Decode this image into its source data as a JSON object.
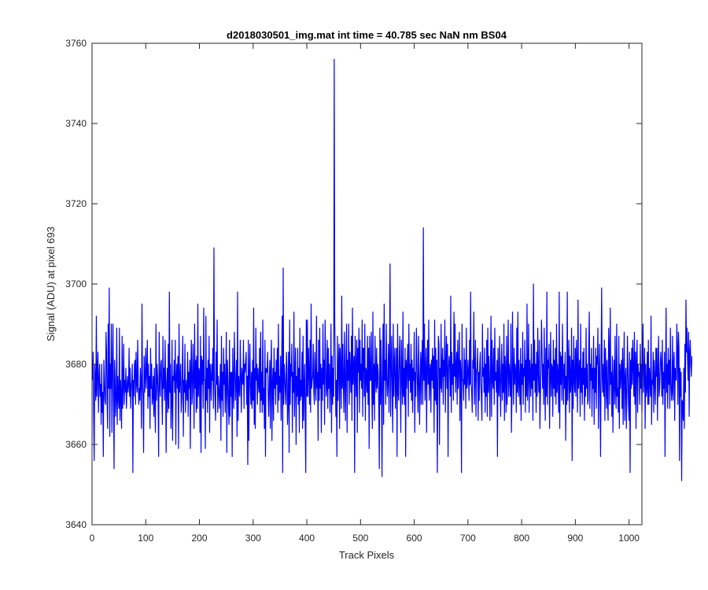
{
  "chart_data": {
    "type": "line",
    "title": "d2018030501_img.mat int time = 40.785 sec  NaN nm BS04",
    "xlabel": "Track Pixels",
    "ylabel": "Signal (ADU) at pixel 693",
    "xlim": [
      0,
      1024
    ],
    "ylim": [
      3640,
      3760
    ],
    "xticks": [
      0,
      100,
      200,
      300,
      400,
      500,
      600,
      700,
      800,
      900,
      1000
    ],
    "yticks": [
      3640,
      3660,
      3680,
      3700,
      3720,
      3740,
      3760
    ],
    "grid": false,
    "legend": "none",
    "line_color": "#0000ff",
    "axes_color": "#262626",
    "series": [
      {
        "x_start": 1,
        "x_step": 1,
        "values": [
          3676,
          3683,
          3667,
          3656,
          3680,
          3676,
          3671,
          3692,
          3672,
          3678,
          3683,
          3668,
          3676,
          3680,
          3672,
          3675,
          3665,
          3680,
          3668,
          3673,
          3657,
          3681,
          3676,
          3671,
          3670,
          3688,
          3683,
          3671,
          3664,
          3690,
          3674,
          3699,
          3662,
          3680,
          3674,
          3690,
          3663,
          3678,
          3690,
          3672,
          3654,
          3681,
          3676,
          3667,
          3671,
          3689,
          3665,
          3677,
          3672,
          3669,
          3689,
          3666,
          3676,
          3672,
          3664,
          3687,
          3669,
          3675,
          3685,
          3670,
          3676,
          3673,
          3679,
          3669,
          3674,
          3677,
          3673,
          3675,
          3684,
          3672,
          3679,
          3669,
          3674,
          3676,
          3680,
          3653,
          3676,
          3672,
          3680,
          3681,
          3670,
          3683,
          3675,
          3673,
          3686,
          3677,
          3670,
          3674,
          3671,
          3679,
          3675,
          3664,
          3695,
          3675,
          3672,
          3658,
          3682,
          3673,
          3677,
          3684,
          3674,
          3679,
          3686,
          3669,
          3680,
          3672,
          3677,
          3664,
          3684,
          3674,
          3680,
          3670,
          3672,
          3677,
          3667,
          3679,
          3669,
          3663,
          3690,
          3671,
          3680,
          3677,
          3672,
          3657,
          3688,
          3675,
          3672,
          3680,
          3681,
          3673,
          3665,
          3687,
          3674,
          3679,
          3671,
          3686,
          3676,
          3658,
          3675,
          3679,
          3668,
          3685,
          3669,
          3698,
          3673,
          3680,
          3664,
          3671,
          3686,
          3661,
          3677,
          3676,
          3681,
          3673,
          3686,
          3660,
          3677,
          3680,
          3674,
          3682,
          3659,
          3690,
          3673,
          3676,
          3680,
          3668,
          3671,
          3679,
          3687,
          3662,
          3676,
          3673,
          3685,
          3668,
          3674,
          3676,
          3671,
          3683,
          3667,
          3678,
          3674,
          3681,
          3659,
          3679,
          3686,
          3670,
          3673,
          3685,
          3677,
          3664,
          3690,
          3674,
          3681,
          3668,
          3682,
          3669,
          3695,
          3672,
          3679,
          3678,
          3663,
          3687,
          3658,
          3682,
          3675,
          3681,
          3669,
          3694,
          3676,
          3676,
          3659,
          3692,
          3671,
          3679,
          3668,
          3681,
          3674,
          3687,
          3663,
          3680,
          3677,
          3671,
          3680,
          3676,
          3684,
          3669,
          3709,
          3676,
          3671,
          3666,
          3683,
          3675,
          3691,
          3668,
          3677,
          3674,
          3669,
          3674,
          3680,
          3661,
          3687,
          3671,
          3678,
          3667,
          3684,
          3675,
          3680,
          3668,
          3675,
          3688,
          3658,
          3681,
          3677,
          3670,
          3665,
          3686,
          3667,
          3678,
          3672,
          3678,
          3657,
          3684,
          3674,
          3669,
          3688,
          3679,
          3671,
          3675,
          3681,
          3662,
          3698,
          3666,
          3677,
          3674,
          3672,
          3686,
          3677,
          3668,
          3679,
          3676,
          3675,
          3686,
          3669,
          3680,
          3678,
          3681,
          3683,
          3670,
          3677,
          3655,
          3686,
          3661,
          3677,
          3685,
          3674,
          3670,
          3678,
          3669,
          3681,
          3671,
          3694,
          3665,
          3679,
          3664,
          3689,
          3676,
          3680,
          3670,
          3679,
          3675,
          3673,
          3684,
          3668,
          3688,
          3671,
          3678,
          3668,
          3691,
          3670,
          3674,
          3664,
          3686,
          3657,
          3679,
          3678,
          3678,
          3683,
          3672,
          3667,
          3675,
          3681,
          3664,
          3679,
          3686,
          3661,
          3675,
          3679,
          3666,
          3684,
          3674,
          3678,
          3670,
          3681,
          3675,
          3684,
          3668,
          3690,
          3671,
          3677,
          3673,
          3682,
          3666,
          3678,
          3692,
          3653,
          3704,
          3670,
          3680,
          3677,
          3673,
          3670,
          3683,
          3679,
          3665,
          3671,
          3683,
          3658,
          3691,
          3670,
          3680,
          3677,
          3685,
          3663,
          3678,
          3673,
          3693,
          3667,
          3678,
          3684,
          3660,
          3677,
          3672,
          3684,
          3670,
          3679,
          3663,
          3689,
          3671,
          3676,
          3672,
          3683,
          3664,
          3687,
          3666,
          3674,
          3680,
          3666,
          3653,
          3691,
          3672,
          3691,
          3672,
          3684,
          3678,
          3670,
          3686,
          3668,
          3695,
          3674,
          3676,
          3677,
          3685,
          3673,
          3670,
          3683,
          3676,
          3671,
          3692,
          3674,
          3678,
          3661,
          3686,
          3671,
          3689,
          3674,
          3680,
          3663,
          3679,
          3671,
          3690,
          3675,
          3681,
          3665,
          3691,
          3681,
          3672,
          3674,
          3686,
          3669,
          3684,
          3674,
          3680,
          3668,
          3676,
          3690,
          3663,
          3682,
          3670,
          3679,
          3672,
          3756,
          3690,
          3680,
          3667,
          3676,
          3657,
          3687,
          3671,
          3680,
          3685,
          3664,
          3684,
          3679,
          3669,
          3697,
          3674,
          3685,
          3675,
          3668,
          3688,
          3676,
          3666,
          3682,
          3690,
          3663,
          3681,
          3676,
          3690,
          3670,
          3683,
          3678,
          3673,
          3687,
          3666,
          3694,
          3675,
          3679,
          3682,
          3653,
          3687,
          3679,
          3672,
          3686,
          3663,
          3684,
          3678,
          3689,
          3668,
          3686,
          3676,
          3680,
          3674,
          3691,
          3667,
          3684,
          3684,
          3672,
          3690,
          3666,
          3679,
          3678,
          3673,
          3687,
          3670,
          3684,
          3659,
          3687,
          3676,
          3676,
          3688,
          3673,
          3664,
          3693,
          3670,
          3680,
          3666,
          3687,
          3677,
          3673,
          3684,
          3674,
          3680,
          3678,
          3669,
          3654,
          3689,
          3670,
          3686,
          3674,
          3652,
          3680,
          3690,
          3665,
          3695,
          3676,
          3681,
          3670,
          3690,
          3677,
          3672,
          3676,
          3685,
          3668,
          3681,
          3705,
          3667,
          3679,
          3687,
          3673,
          3663,
          3690,
          3672,
          3680,
          3684,
          3669,
          3676,
          3684,
          3657,
          3690,
          3673,
          3671,
          3681,
          3687,
          3676,
          3663,
          3686,
          3678,
          3670,
          3693,
          3672,
          3679,
          3670,
          3684,
          3657,
          3681,
          3674,
          3680,
          3685,
          3667,
          3690,
          3676,
          3680,
          3673,
          3685,
          3671,
          3681,
          3668,
          3679,
          3676,
          3688,
          3663,
          3678,
          3672,
          3689,
          3681,
          3674,
          3668,
          3687,
          3677,
          3665,
          3676,
          3683,
          3670,
          3681,
          3686,
          3670,
          3714,
          3676,
          3690,
          3671,
          3678,
          3684,
          3663,
          3679,
          3686,
          3675,
          3691,
          3671,
          3678,
          3680,
          3668,
          3681,
          3676,
          3684,
          3674,
          3682,
          3663,
          3691,
          3671,
          3684,
          3670,
          3681,
          3653,
          3675,
          3687,
          3685,
          3660,
          3679,
          3674,
          3690,
          3673,
          3680,
          3684,
          3670,
          3681,
          3677,
          3691,
          3668,
          3680,
          3687,
          3674,
          3685,
          3657,
          3679,
          3682,
          3680,
          3672,
          3697,
          3668,
          3683,
          3675,
          3680,
          3671,
          3693,
          3677,
          3690,
          3673,
          3679,
          3683,
          3670,
          3686,
          3674,
          3680,
          3688,
          3666,
          3681,
          3678,
          3653,
          3690,
          3676,
          3676,
          3671,
          3684,
          3675,
          3681,
          3669,
          3689,
          3674,
          3675,
          3681,
          3678,
          3671,
          3686,
          3675,
          3698,
          3675,
          3673,
          3668,
          3681,
          3679,
          3693,
          3670,
          3678,
          3686,
          3667,
          3678,
          3679,
          3684,
          3666,
          3678,
          3671,
          3680,
          3683,
          3675,
          3672,
          3666,
          3690,
          3677,
          3679,
          3673,
          3684,
          3668,
          3680,
          3672,
          3686,
          3667,
          3689,
          3673,
          3682,
          3676,
          3666,
          3680,
          3692,
          3667,
          3686,
          3676,
          3674,
          3684,
          3670,
          3689,
          3676,
          3678,
          3673,
          3681,
          3657,
          3684,
          3674,
          3672,
          3687,
          3676,
          3667,
          3679,
          3685,
          3671,
          3680,
          3673,
          3690,
          3666,
          3682,
          3678,
          3668,
          3687,
          3670,
          3679,
          3691,
          3672,
          3680,
          3677,
          3672,
          3690,
          3663,
          3672,
          3693,
          3679,
          3670,
          3684,
          3675,
          3680,
          3678,
          3668,
          3689,
          3673,
          3693,
          3672,
          3681,
          3676,
          3670,
          3684,
          3666,
          3680,
          3675,
          3688,
          3670,
          3679,
          3677,
          3686,
          3668,
          3681,
          3672,
          3695,
          3671,
          3677,
          3690,
          3668,
          3681,
          3678,
          3672,
          3685,
          3674,
          3680,
          3666,
          3700,
          3676,
          3686,
          3673,
          3680,
          3668,
          3683,
          3672,
          3689,
          3678,
          3673,
          3686,
          3664,
          3672,
          3679,
          3691,
          3684,
          3674,
          3680,
          3670,
          3689,
          3676,
          3666,
          3684,
          3672,
          3698,
          3670,
          3681,
          3679,
          3685,
          3664,
          3676,
          3688,
          3672,
          3680,
          3679,
          3667,
          3686,
          3674,
          3681,
          3672,
          3684,
          3670,
          3690,
          3673,
          3680,
          3677,
          3668,
          3698,
          3664,
          3683,
          3675,
          3682,
          3671,
          3690,
          3678,
          3670,
          3680,
          3674,
          3683,
          3661,
          3677,
          3670,
          3698,
          3671,
          3679,
          3686,
          3668,
          3682,
          3673,
          3676,
          3689,
          3656,
          3681,
          3669,
          3687,
          3676,
          3673,
          3684,
          3672,
          3686,
          3679,
          3668,
          3696,
          3674,
          3678,
          3681,
          3667,
          3690,
          3673,
          3679,
          3670,
          3683,
          3675,
          3684,
          3666,
          3679,
          3672,
          3689,
          3674,
          3680,
          3670,
          3671,
          3685,
          3693,
          3669,
          3680,
          3676,
          3684,
          3667,
          3679,
          3674,
          3687,
          3665,
          3679,
          3673,
          3684,
          3669,
          3682,
          3680,
          3689,
          3664,
          3676,
          3685,
          3672,
          3657,
          3680,
          3699,
          3677,
          3673,
          3680,
          3672,
          3686,
          3666,
          3684,
          3679,
          3669,
          3681,
          3672,
          3666,
          3689,
          3684,
          3670,
          3694,
          3675,
          3678,
          3667,
          3682,
          3663,
          3676,
          3681,
          3670,
          3687,
          3674,
          3669,
          3690,
          3672,
          3674,
          3668,
          3687,
          3664,
          3680,
          3674,
          3678,
          3681,
          3669,
          3684,
          3665,
          3678,
          3688,
          3666,
          3676,
          3679,
          3664,
          3672,
          3687,
          3679,
          3670,
          3666,
          3683,
          3653,
          3681,
          3674,
          3684,
          3675,
          3686,
          3679,
          3672,
          3688,
          3670,
          3683,
          3664,
          3681,
          3686,
          3668,
          3680,
          3677,
          3678,
          3670,
          3685,
          3674,
          3680,
          3668,
          3680,
          3690,
          3673,
          3676,
          3684,
          3664,
          3680,
          3672,
          3674,
          3683,
          3670,
          3686,
          3670,
          3679,
          3676,
          3672,
          3692,
          3665,
          3676,
          3675,
          3683,
          3668,
          3681,
          3676,
          3670,
          3684,
          3677,
          3684,
          3666,
          3679,
          3687,
          3672,
          3674,
          3679,
          3683,
          3680,
          3672,
          3686,
          3670,
          3678,
          3674,
          3683,
          3657,
          3677,
          3694,
          3673,
          3680,
          3669,
          3684,
          3675,
          3681,
          3669,
          3689,
          3676,
          3671,
          3673,
          3687,
          3671,
          3680,
          3683,
          3666,
          3679,
          3677,
          3676,
          3690,
          3684,
          3670,
          3688,
          3684,
          3656,
          3679,
          3672,
          3678,
          3651,
          3671,
          3670,
          3666,
          3679,
          3664,
          3685,
          3673,
          3696,
          3683,
          3689,
          3681,
          3676,
          3688,
          3667,
          3683,
          3686,
          3680,
          3677,
          3682
        ]
      }
    ]
  }
}
